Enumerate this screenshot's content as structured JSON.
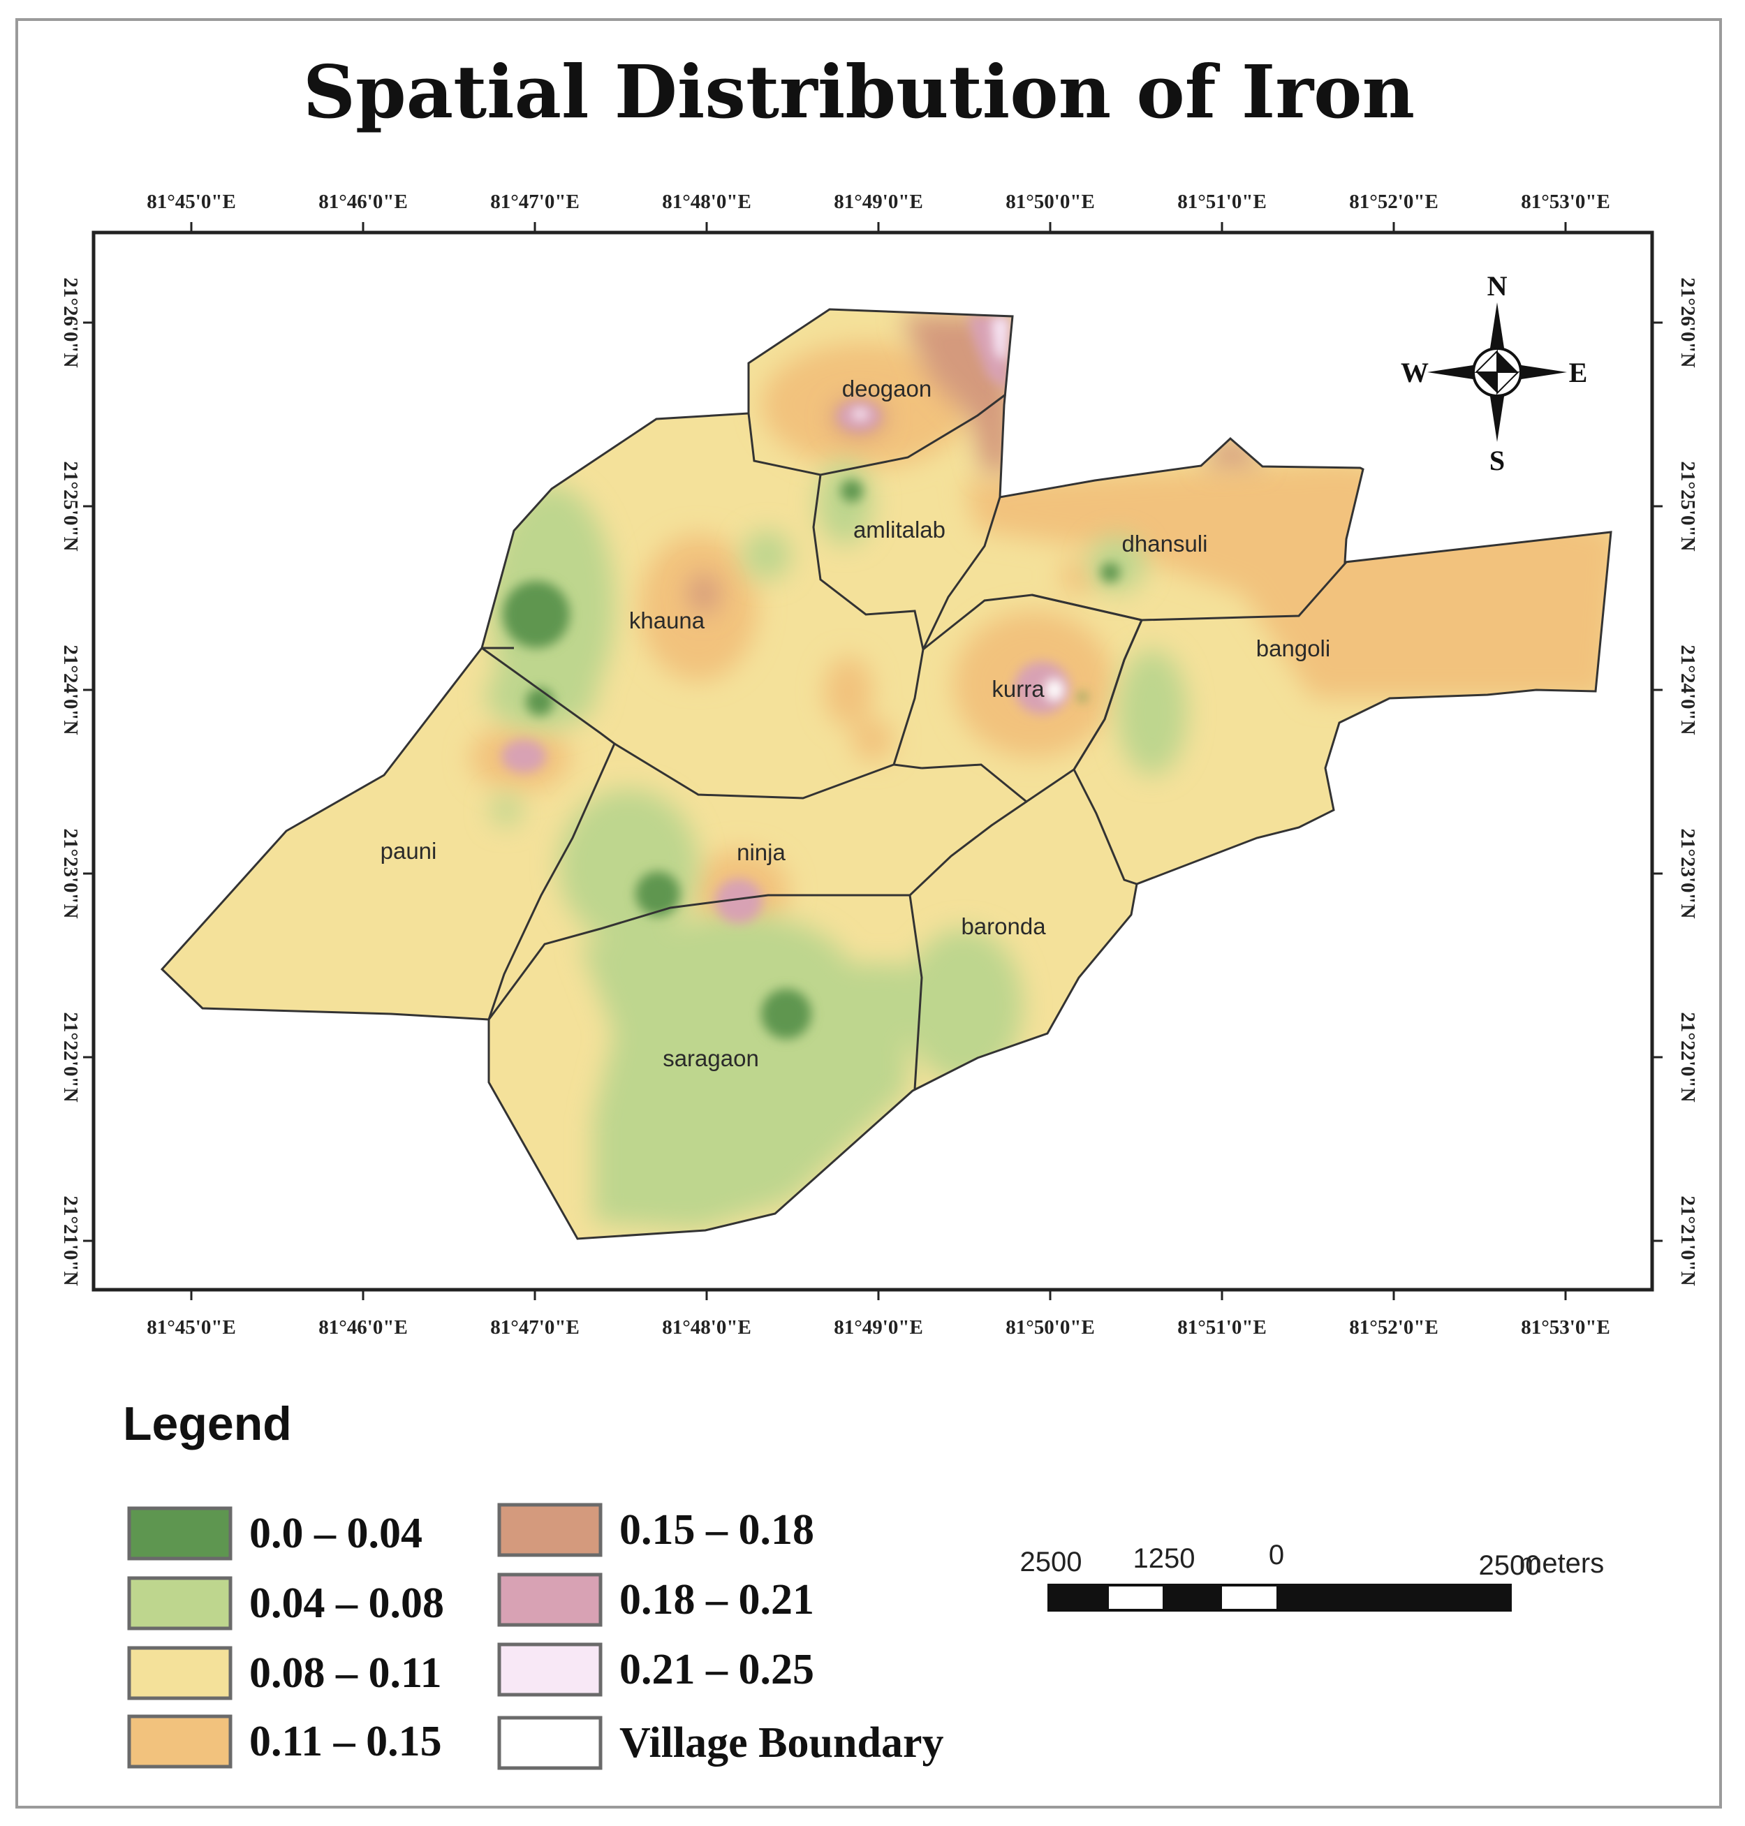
{
  "title": "Spatial Distribution of Iron",
  "lon_ticks": [
    "81°45'0\"E",
    "81°46'0\"E",
    "81°47'0\"E",
    "81°48'0\"E",
    "81°49'0\"E",
    "81°50'0\"E",
    "81°51'0\"E",
    "81°52'0\"E",
    "81°53'0\"E"
  ],
  "lat_ticks": [
    "21°26'0\"N",
    "21°25'0\"N",
    "21°24'0\"N",
    "21°23'0\"N",
    "21°22'0\"N",
    "21°21'0\"N"
  ],
  "villages": [
    "deogaon",
    "amlitalab",
    "dhansuli",
    "khauna",
    "bangoli",
    "kurra",
    "pauni",
    "ninja",
    "baronda",
    "saragaon"
  ],
  "compass": {
    "n": "N",
    "s": "S",
    "e": "E",
    "w": "W"
  },
  "legend": {
    "title": "Legend",
    "items": [
      {
        "label": "0.0 – 0.04",
        "color": "#5e9650"
      },
      {
        "label": "0.04 – 0.08",
        "color": "#bed68e"
      },
      {
        "label": "0.08 – 0.11",
        "color": "#f4e19a"
      },
      {
        "label": "0.11 – 0.15",
        "color": "#f2c27d"
      },
      {
        "label": "0.15 – 0.18",
        "color": "#d49a7d"
      },
      {
        "label": "0.18 – 0.21",
        "color": "#d8a2b4"
      },
      {
        "label": "0.21 – 0.25",
        "color": "#f8e8f6"
      },
      {
        "label": "Village Boundary",
        "color": "#ffffff"
      }
    ]
  },
  "scale_bar": {
    "labels": [
      "2500",
      "1250",
      "0",
      "2500"
    ],
    "unit": "meters"
  }
}
